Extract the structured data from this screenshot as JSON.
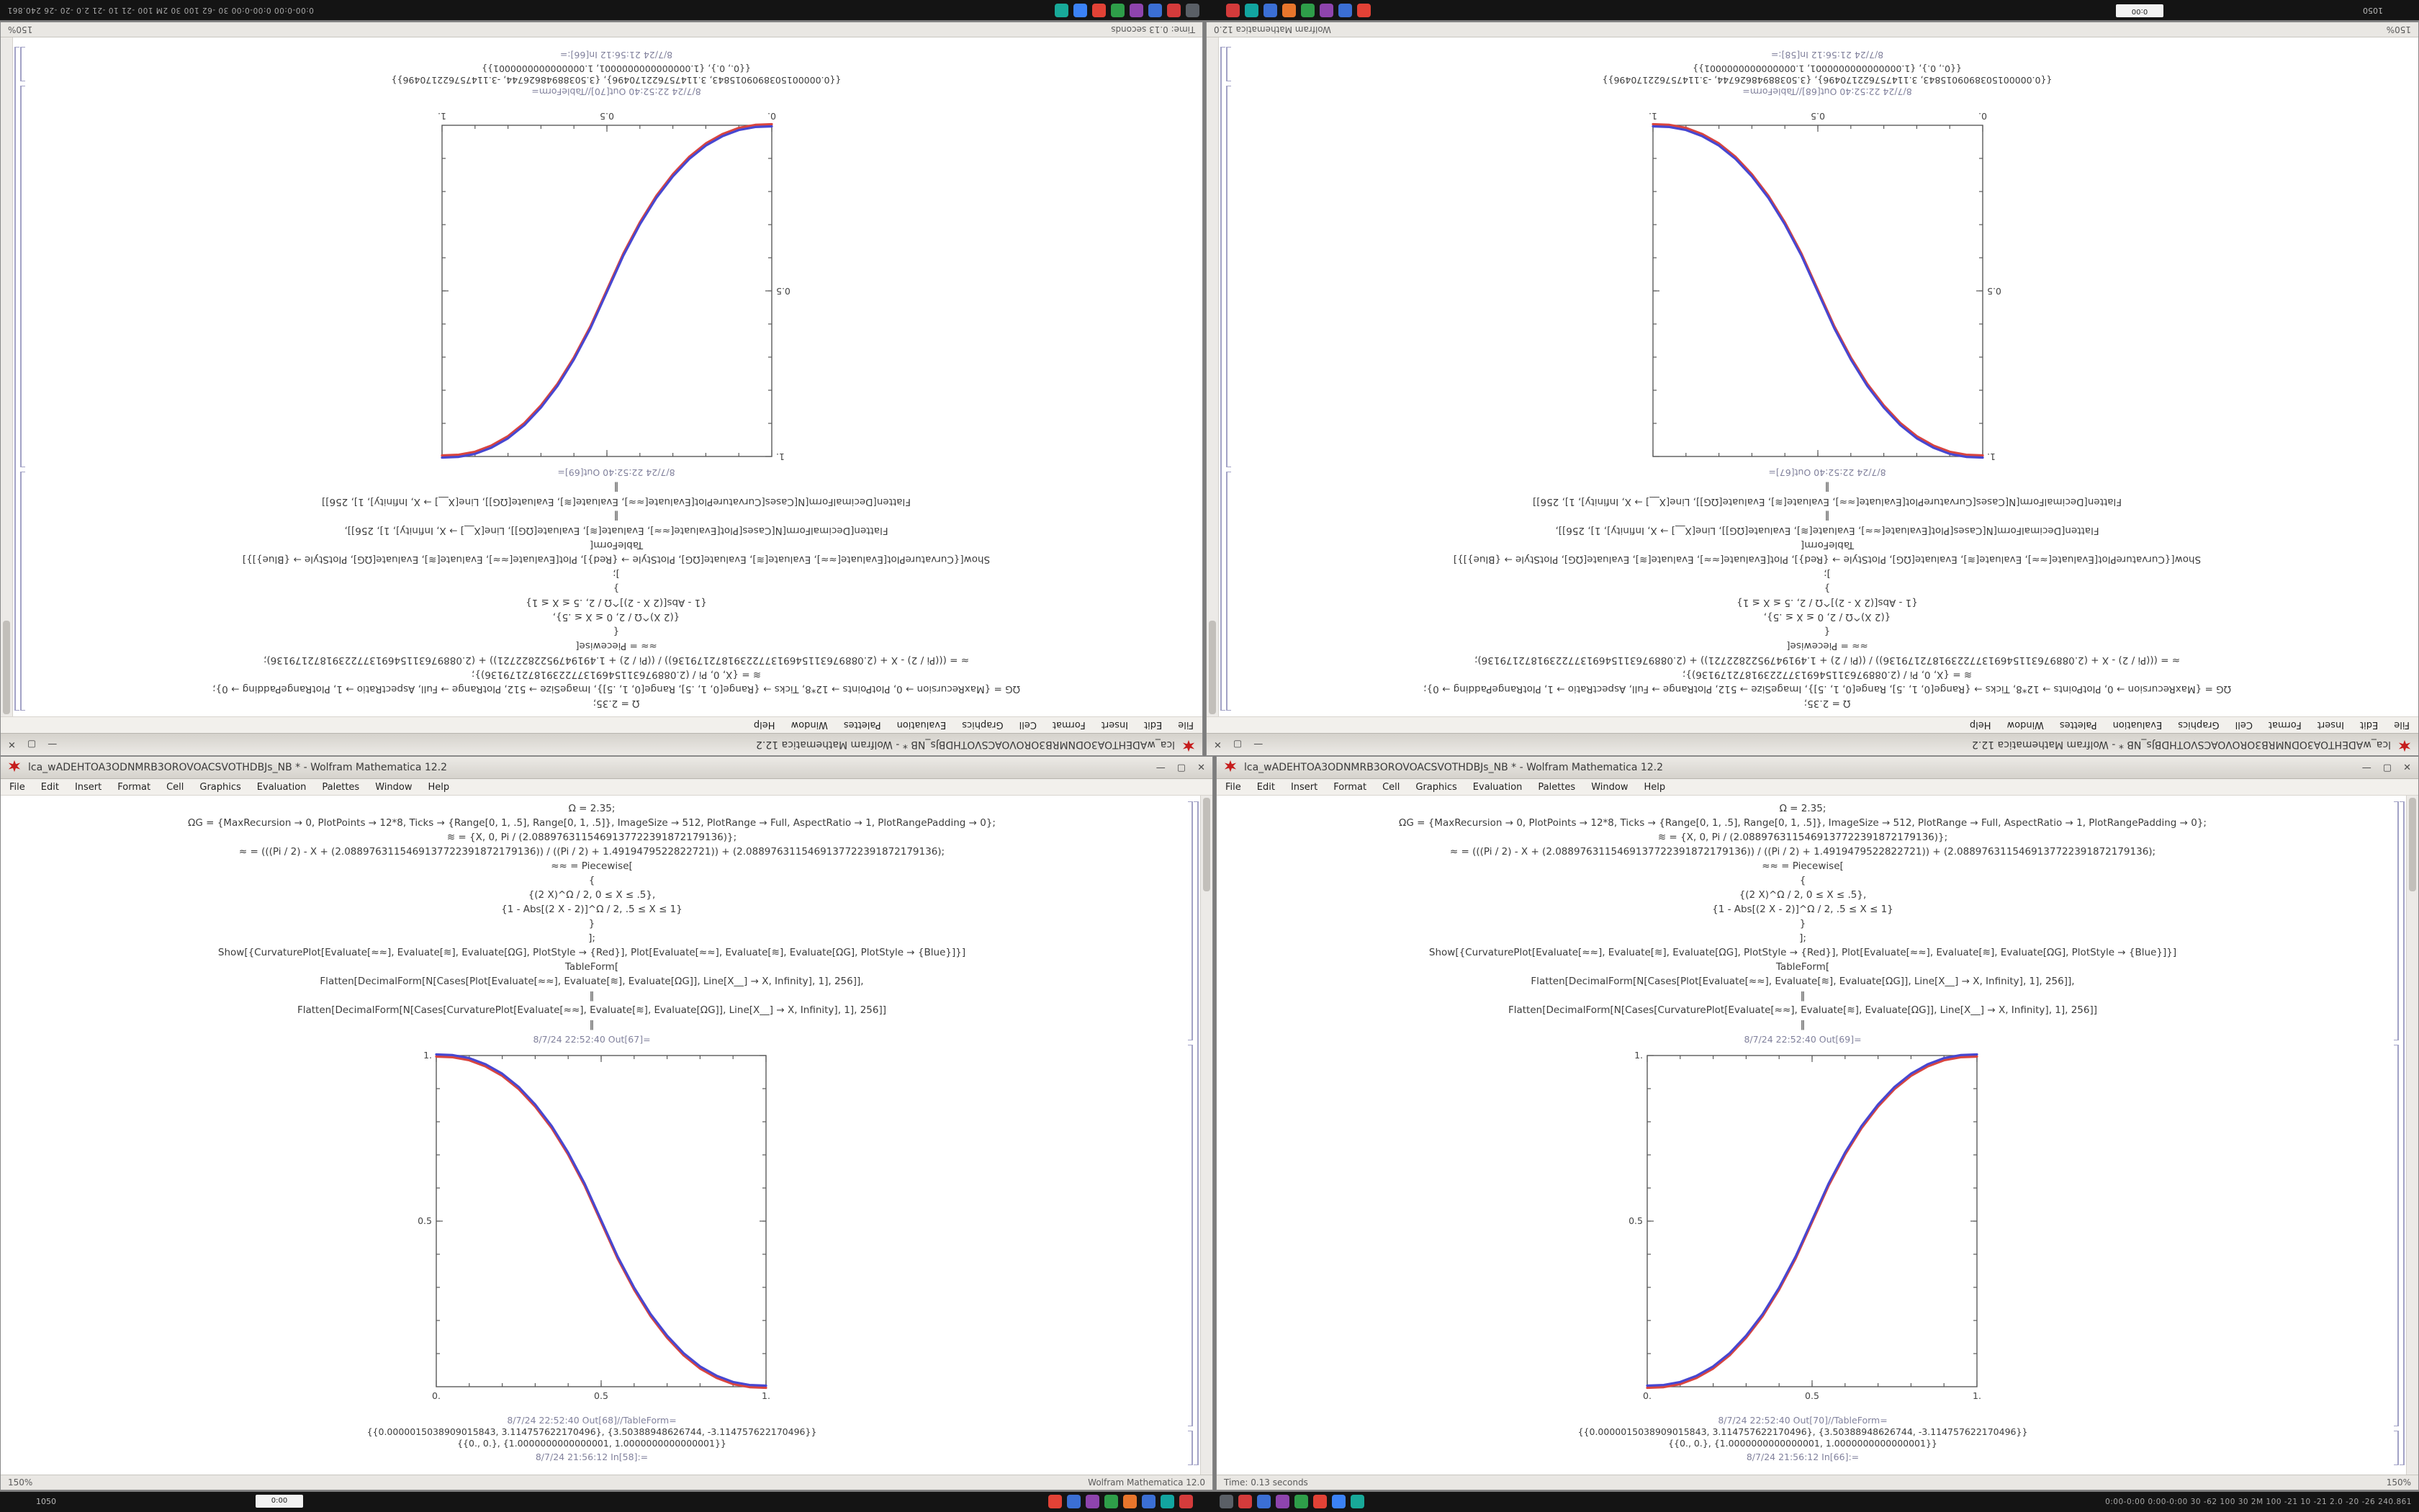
{
  "taskbar": {
    "left_text": "1050",
    "meter_text": "0:00",
    "right_text": "0:00-0:00  0:00-0:00  30 -62 100 30 2M 100 -21 10 -21 2.0 -20 -26 240.861",
    "tray1": [
      "#e24236",
      "#3b6fd4",
      "#8e44ad",
      "#2e9e49",
      "#e8762c",
      "#3b6fd4",
      "#12a5a0",
      "#d43b3b"
    ],
    "tray2": [
      "#5a5f66",
      "#d43b3b",
      "#3b6fd4",
      "#8e44ad",
      "#2e9e49",
      "#e24236",
      "#3b82f6",
      "#18a999"
    ]
  },
  "chrome": {
    "menu": [
      "File",
      "Edit",
      "Insert",
      "Format",
      "Cell",
      "Graphics",
      "Evaluation",
      "Palettes",
      "Window",
      "Help"
    ],
    "minimize": "—",
    "maximize": "▢",
    "close": "✕",
    "separator": "‖",
    "logo_color": "#c61d1d"
  },
  "window_b": {
    "title": "lca_wADEHTOA3ODNMRB3OROVOACSVOTHDBJs_NB * - Wolfram Mathematica 12.2",
    "status_left": "150%",
    "status_right": "Wolfram Mathematica 12.0",
    "code": [
      "Ω = 2.35;",
      "ΩG = {MaxRecursion → 0, PlotPoints → 12*8, Ticks → {Range[0, 1, .5], Range[0, 1, .5]}, ImageSize → 512, PlotRange → Full, AspectRatio → 1, PlotRangePadding → 0};",
      "≋ = {X, 0, Pi / (2.0889763115469137722391872179136)};",
      "≈ = (((Pi / 2) - X + (2.0889763115469137722391872179136)) / ((Pi / 2) + 1.4919479522822721)) + (2.0889763115469137722391872179136);",
      "≈≈ = Piecewise[",
      "{",
      "{(2 X)^Ω / 2, 0 ≤ X ≤ .5},",
      "{1 - Abs[(2 X - 2)]^Ω / 2, .5 ≤ X ≤ 1}",
      "}",
      "];",
      "Show[{CurvaturePlot[Evaluate[≈≈], Evaluate[≋], Evaluate[ΩG], PlotStyle → {Red}], Plot[Evaluate[≈≈], Evaluate[≋], Evaluate[ΩG], PlotStyle → {Blue}]}]",
      "TableForm[",
      "Flatten[DecimalForm[N[Cases[Plot[Evaluate[≈≈], Evaluate[≋], Evaluate[ΩG]], Line[X__] → X, Infinity], 1], 256]],",
      "‖",
      "Flatten[DecimalForm[N[Cases[CurvaturePlot[Evaluate[≈≈], Evaluate[≋], Evaluate[ΩG]], Line[X__] → X, Infinity], 1], 256]]",
      "‖"
    ],
    "out1_label": "8/7/24 22:52:40 Out[67]=",
    "out2_label": "8/7/24 22:52:40 Out[68]//TableForm=",
    "numbers1": "{{0.0000015038909015843, 3.114757622170496}, {3.50388948626744, -3.114757622170496}}",
    "numbers2": "{{0., 0.}, {1.0000000000000001, 1.0000000000000001}}",
    "in_label": "8/7/24 21:56:12 In[58]:="
  },
  "window_a": {
    "title": "lca_wADEHTOA3ODNMRB3OROVOACSVOTHDBJs_NB * - Wolfram Mathematica 12.2",
    "status_left": "Time: 0.13 seconds",
    "status_right": "150%",
    "code": [
      "Ω = 2.35;",
      "ΩG = {MaxRecursion → 0, PlotPoints → 12*8, Ticks → {Range[0, 1, .5], Range[0, 1, .5]}, ImageSize → 512, PlotRange → Full, AspectRatio → 1, PlotRangePadding → 0};",
      "≋ = {X, 0, Pi / (2.0889763115469137722391872179136)};",
      "≈ = (((Pi / 2) - X + (2.0889763115469137722391872179136)) / ((Pi / 2) + 1.4919479522822721)) + (2.0889763115469137722391872179136);",
      "≈≈ = Piecewise[",
      "{",
      "{(2 X)^Ω / 2, 0 ≤ X ≤ .5},",
      "{1 - Abs[(2 X - 2)]^Ω / 2, .5 ≤ X ≤ 1}",
      "}",
      "];",
      "Show[{CurvaturePlot[Evaluate[≈≈], Evaluate[≋], Evaluate[ΩG], PlotStyle → {Red}], Plot[Evaluate[≈≈], Evaluate[≋], Evaluate[ΩG], PlotStyle → {Blue}]}]",
      "TableForm[",
      "Flatten[DecimalForm[N[Cases[Plot[Evaluate[≈≈], Evaluate[≋], Evaluate[ΩG]], Line[X__] → X, Infinity], 1], 256]],",
      "‖",
      "Flatten[DecimalForm[N[Cases[CurvaturePlot[Evaluate[≈≈], Evaluate[≋], Evaluate[ΩG]], Line[X__] → X, Infinity], 1], 256]]",
      "‖"
    ],
    "out1_label": "8/7/24 22:52:40 Out[69]=",
    "out2_label": "8/7/24 22:52:40 Out[70]//TableForm=",
    "numbers1": "{{0.0000015038909015843, 3.114757622170496}, {3.50388948626744, -3.114757622170496}}",
    "numbers2": "{{0., 0.}, {1.0000000000000001, 1.0000000000000001}}",
    "in_label": "8/7/24 21:56:12 In[66]:="
  },
  "chart_data": [
    {
      "type": "line",
      "title": "",
      "xlabel": "",
      "ylabel": "",
      "xlim": [
        0,
        1
      ],
      "ylim": [
        0,
        1
      ],
      "frame": true,
      "legend": "none",
      "x": [
        0,
        0.05,
        0.1,
        0.15,
        0.2,
        0.25,
        0.3,
        0.35,
        0.4,
        0.45,
        0.5,
        0.55,
        0.6,
        0.65,
        0.7,
        0.75,
        0.8,
        0.85,
        0.9,
        0.95,
        1
      ],
      "series": [
        {
          "name": "CurvaturePlot (Red)",
          "color": "#d9453f",
          "values": [
            1,
            0.998,
            0.989,
            0.97,
            0.942,
            0.902,
            0.849,
            0.784,
            0.704,
            0.61,
            0.5,
            0.39,
            0.296,
            0.216,
            0.151,
            0.098,
            0.058,
            0.03,
            0.011,
            0.002,
            0
          ]
        },
        {
          "name": "Plot (Blue)",
          "color": "#4747d1",
          "values": [
            1,
            0.998,
            0.989,
            0.97,
            0.942,
            0.902,
            0.849,
            0.784,
            0.704,
            0.61,
            0.5,
            0.39,
            0.296,
            0.216,
            0.151,
            0.098,
            0.058,
            0.03,
            0.011,
            0.002,
            0
          ]
        }
      ],
      "xticks": [
        {
          "v": 0,
          "label": "0."
        },
        {
          "v": 0.5,
          "label": "0.5"
        },
        {
          "v": 1,
          "label": "1."
        }
      ],
      "yticks": [
        {
          "v": 0.5,
          "label": "0.5"
        },
        {
          "v": 1,
          "label": "1."
        }
      ]
    },
    {
      "type": "line",
      "title": "",
      "xlabel": "",
      "ylabel": "",
      "xlim": [
        0,
        1
      ],
      "ylim": [
        0,
        1
      ],
      "frame": true,
      "legend": "none",
      "x": [
        0,
        0.05,
        0.1,
        0.15,
        0.2,
        0.25,
        0.3,
        0.35,
        0.4,
        0.45,
        0.5,
        0.55,
        0.6,
        0.65,
        0.7,
        0.75,
        0.8,
        0.85,
        0.9,
        0.95,
        1
      ],
      "series": [
        {
          "name": "CurvaturePlot (Red)",
          "color": "#d9453f",
          "values": [
            0,
            0.002,
            0.011,
            0.03,
            0.058,
            0.098,
            0.151,
            0.216,
            0.296,
            0.39,
            0.5,
            0.61,
            0.704,
            0.784,
            0.849,
            0.902,
            0.942,
            0.97,
            0.989,
            0.998,
            1
          ]
        },
        {
          "name": "Plot (Blue)",
          "color": "#4747d1",
          "values": [
            0,
            0.002,
            0.011,
            0.03,
            0.058,
            0.098,
            0.151,
            0.216,
            0.296,
            0.39,
            0.5,
            0.61,
            0.704,
            0.784,
            0.849,
            0.902,
            0.942,
            0.97,
            0.989,
            0.998,
            1
          ]
        }
      ],
      "xticks": [
        {
          "v": 0,
          "label": "0."
        },
        {
          "v": 0.5,
          "label": "0.5"
        },
        {
          "v": 1,
          "label": "1."
        }
      ],
      "yticks": [
        {
          "v": 0.5,
          "label": "0.5"
        },
        {
          "v": 1,
          "label": "1."
        }
      ]
    }
  ]
}
